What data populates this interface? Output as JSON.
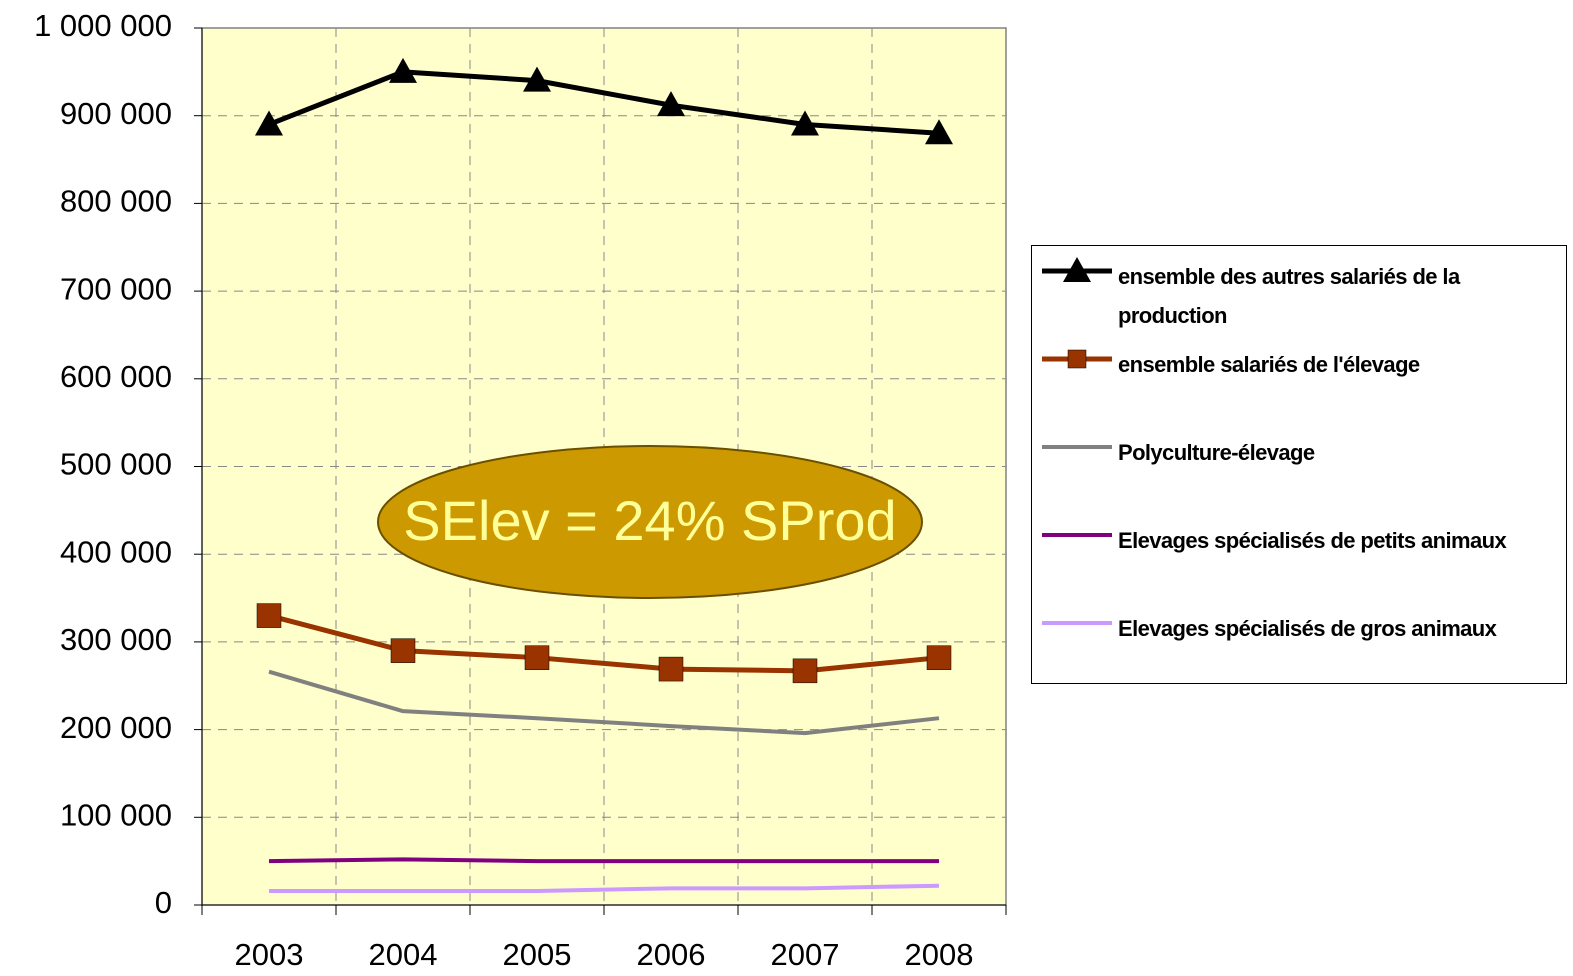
{
  "chart_data": {
    "type": "line",
    "categories": [
      "2003",
      "2004",
      "2005",
      "2006",
      "2007",
      "2008"
    ],
    "series": [
      {
        "name": "ensemble des autres salariés de la production",
        "color": "#000000",
        "marker": "triangle",
        "values": [
          890000,
          950000,
          940000,
          912000,
          890000,
          880000
        ]
      },
      {
        "name": "ensemble salariés de l'élevage",
        "color": "#993300",
        "marker": "square",
        "values": [
          330000,
          290000,
          282000,
          269000,
          267000,
          282000
        ]
      },
      {
        "name": "Polyculture-élevage",
        "color": "#808080",
        "values": [
          266000,
          221000,
          213000,
          204000,
          196000,
          213000
        ]
      },
      {
        "name": "Elevages spécialisés de petits animaux",
        "color": "#800080",
        "values": [
          50000,
          52000,
          50000,
          50000,
          50000,
          50000
        ]
      },
      {
        "name": "Elevages spécialisés de gros animaux",
        "color": "#cc99ff",
        "values": [
          16000,
          16000,
          16000,
          19000,
          19000,
          22000
        ]
      }
    ],
    "ylim": [
      0,
      1000000
    ],
    "yticks": [
      0,
      {
        "value": 100000,
        "label": "100 000"
      },
      {
        "value": 200000,
        "label": "200 000"
      },
      {
        "value": 300000,
        "label": "300 000"
      },
      {
        "value": 400000,
        "label": "400 000"
      },
      {
        "value": 500000,
        "label": "500 000"
      },
      {
        "value": 600000,
        "label": "600 000"
      },
      {
        "value": 700000,
        "label": "700 000"
      },
      {
        "value": 800000,
        "label": "800 000"
      },
      {
        "value": 900000,
        "label": "900 000"
      },
      {
        "value": 1000000,
        "label": "1 000 000"
      }
    ],
    "grid": true,
    "legend": "right",
    "background": "#ffffcc",
    "annotation": "SElev = 24% SProd"
  }
}
